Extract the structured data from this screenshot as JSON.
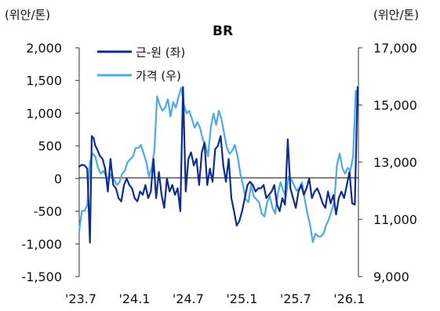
{
  "chart_data": {
    "type": "line",
    "title": "BR",
    "y_left_unit": "(위안/톤)",
    "y_right_unit": "(위안/톤)",
    "ylim_left": [
      -1500,
      2000
    ],
    "ylim_right": [
      9000,
      17000
    ],
    "y_left_ticks": [
      "2,000",
      "1,500",
      "1,000",
      "500",
      "0",
      "-500",
      "-1,000",
      "-1,500"
    ],
    "y_left_tick_values": [
      2000,
      1500,
      1000,
      500,
      0,
      -500,
      -1000,
      -1500
    ],
    "y_right_ticks": [
      "17,000",
      "15,000",
      "13,000",
      "11,000",
      "9,000"
    ],
    "y_right_tick_values": [
      17000,
      15000,
      13000,
      11000,
      9000
    ],
    "x_ticks": [
      "'23.7",
      "'24.1",
      "'24.7",
      "'25.1",
      "'25.7",
      "'26.1"
    ],
    "x_tick_values": [
      0,
      6,
      12,
      18,
      24,
      30
    ],
    "xlim": [
      0,
      31.2
    ],
    "legend_position": "top",
    "series": [
      {
        "name": "근-원 (좌)",
        "axis": "left",
        "color": "#0d2c8c",
        "x": [
          0,
          0.3,
          0.6,
          0.9,
          1.2,
          1.4,
          1.6,
          1.8,
          2.0,
          2.3,
          2.6,
          2.9,
          3.2,
          3.5,
          3.8,
          4.1,
          4.4,
          4.7,
          5.0,
          5.3,
          5.6,
          5.9,
          6.2,
          6.5,
          6.8,
          7.1,
          7.4,
          7.7,
          8.0,
          8.3,
          8.6,
          8.9,
          9.2,
          9.5,
          9.8,
          10.1,
          10.4,
          10.7,
          11.0,
          11.3,
          11.6,
          11.9,
          12.2,
          12.5,
          12.8,
          13.1,
          13.4,
          13.7,
          14.0,
          14.3,
          14.6,
          14.9,
          15.2,
          15.5,
          15.8,
          16.1,
          16.4,
          16.7,
          17.0,
          17.3,
          17.6,
          17.9,
          18.2,
          18.5,
          18.8,
          19.1,
          19.4,
          19.7,
          20.0,
          20.3,
          20.6,
          20.9,
          21.2,
          21.5,
          21.8,
          22.1,
          22.4,
          22.7,
          23.0,
          23.3,
          23.6,
          23.9,
          24.2,
          24.5,
          24.8,
          25.1,
          25.4,
          25.7,
          26.0,
          26.3,
          26.6,
          26.9,
          27.2,
          27.5,
          27.8,
          28.1,
          28.4,
          28.7,
          29.0,
          29.3,
          29.6,
          29.9,
          30.2,
          30.5,
          30.8,
          31.1
        ],
        "values": [
          180,
          210,
          200,
          150,
          -980,
          650,
          620,
          500,
          450,
          350,
          300,
          150,
          -200,
          300,
          -100,
          -150,
          -300,
          -350,
          -100,
          0,
          -100,
          -150,
          -300,
          -350,
          -200,
          -250,
          -100,
          -300,
          -200,
          300,
          -300,
          100,
          -250,
          -450,
          0,
          -200,
          -100,
          -250,
          -150,
          -500,
          1400,
          -200,
          300,
          400,
          200,
          300,
          -100,
          400,
          550,
          -100,
          150,
          -50,
          450,
          500,
          650,
          200,
          -50,
          300,
          -300,
          -500,
          -720,
          -650,
          -500,
          -300,
          -100,
          -50,
          -100,
          -200,
          -150,
          -150,
          -100,
          -300,
          -250,
          -200,
          -100,
          -400,
          -500,
          -300,
          -400,
          600,
          -150,
          -300,
          -450,
          -200,
          -100,
          -250,
          -150,
          0,
          -300,
          -200,
          -150,
          -250,
          -380,
          -450,
          -200,
          -380,
          -250,
          -550,
          -300,
          -200,
          -300,
          -100,
          100,
          -380,
          -400,
          1400
        ],
        "values_note": ""
      },
      {
        "name": "가격 (우)",
        "axis": "right",
        "color": "#4da8ec",
        "x": [
          0,
          0.3,
          0.6,
          0.9,
          1.2,
          1.5,
          1.8,
          2.1,
          2.4,
          2.7,
          3.0,
          3.3,
          3.6,
          3.9,
          4.2,
          4.5,
          4.8,
          5.1,
          5.4,
          5.7,
          6.0,
          6.3,
          6.6,
          6.9,
          7.2,
          7.5,
          7.8,
          8.1,
          8.4,
          8.7,
          9.0,
          9.3,
          9.6,
          9.9,
          10.2,
          10.5,
          10.8,
          11.1,
          11.4,
          11.7,
          12.0,
          12.3,
          12.6,
          12.9,
          13.2,
          13.5,
          13.8,
          14.1,
          14.4,
          14.7,
          15.0,
          15.3,
          15.6,
          15.9,
          16.2,
          16.5,
          16.8,
          17.1,
          17.4,
          17.7,
          18.0,
          18.3,
          18.6,
          18.9,
          19.2,
          19.5,
          19.8,
          20.1,
          20.4,
          20.7,
          21.0,
          21.3,
          21.6,
          21.9,
          22.2,
          22.5,
          22.8,
          23.1,
          23.4,
          23.7,
          24.0,
          24.3,
          24.6,
          24.9,
          25.2,
          25.5,
          25.8,
          26.1,
          26.4,
          26.7,
          27.0,
          27.3,
          27.6,
          27.9,
          28.2,
          28.5,
          28.8,
          29.1,
          29.4,
          29.7,
          30.0,
          30.3,
          30.6,
          30.9,
          31.1
        ],
        "values": [
          10600,
          11300,
          11300,
          11500,
          13000,
          13300,
          13200,
          12800,
          12600,
          12700,
          12500,
          12400,
          12600,
          12400,
          12200,
          12300,
          12600,
          12700,
          13000,
          13100,
          13200,
          13500,
          13500,
          13600,
          13300,
          13000,
          12500,
          12800,
          13400,
          15300,
          15000,
          14800,
          14900,
          15200,
          14600,
          15100,
          14900,
          15300,
          15600,
          15000,
          14700,
          14800,
          14500,
          14200,
          14400,
          14200,
          13800,
          13600,
          13200,
          14200,
          14700,
          14300,
          14800,
          14500,
          14000,
          13500,
          13300,
          13400,
          13600,
          13200,
          12600,
          12200,
          11700,
          11600,
          12200,
          11800,
          11700,
          11600,
          11200,
          11100,
          11600,
          11800,
          11400,
          11200,
          11900,
          12300,
          12000,
          11800,
          12500,
          12400,
          12200,
          12000,
          12100,
          12300,
          11700,
          11200,
          10800,
          10200,
          10500,
          10400,
          10400,
          10500,
          10800,
          11000,
          11300,
          11600,
          12900,
          13300,
          12800,
          12600,
          12800,
          12700,
          13200,
          15500,
          15300
        ],
        "values_note": ""
      }
    ]
  }
}
